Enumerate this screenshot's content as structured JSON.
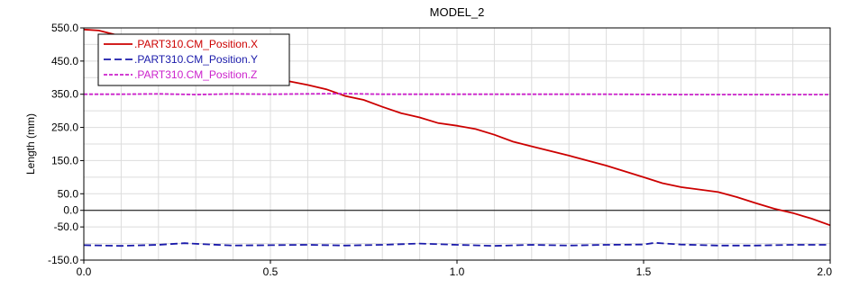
{
  "chart_data": {
    "type": "line",
    "title": "MODEL_2",
    "xlabel": "",
    "ylabel": "Length (mm)",
    "xlim": [
      0.0,
      2.0
    ],
    "ylim": [
      -150.0,
      550.0
    ],
    "x_ticks": [
      0.0,
      0.5,
      1.0,
      1.5,
      2.0
    ],
    "x_tick_labels": [
      "0.0",
      "0.5",
      "1.0",
      "1.5",
      "2.0"
    ],
    "y_ticks": [
      550.0,
      450.0,
      350.0,
      250.0,
      150.0,
      50.0,
      0.0,
      -50.0,
      -150.0
    ],
    "y_tick_labels": [
      "550.0",
      "450.0",
      "350.0",
      "250.0",
      "150.0",
      "50.0",
      "0.0",
      "-50.0",
      "-150.0"
    ],
    "grid": true,
    "zero_line": true,
    "legend_position": "top-left",
    "series": [
      {
        "name": ".PART310.CM_Position.X",
        "color": "#cc0000",
        "style": "solid",
        "x": [
          0.0,
          0.04,
          0.1,
          0.2,
          0.3,
          0.4,
          0.5,
          0.6,
          0.65,
          0.7,
          0.75,
          0.8,
          0.85,
          0.9,
          0.95,
          1.0,
          1.05,
          1.1,
          1.15,
          1.2,
          1.3,
          1.4,
          1.5,
          1.55,
          1.6,
          1.7,
          1.75,
          1.8,
          1.85,
          1.9,
          1.95,
          2.0
        ],
        "y": [
          545,
          542,
          525,
          498,
          470,
          440,
          400,
          378,
          365,
          345,
          333,
          312,
          293,
          280,
          263,
          255,
          245,
          228,
          207,
          193,
          165,
          135,
          100,
          82,
          70,
          55,
          40,
          22,
          5,
          -8,
          -25,
          -45
        ]
      },
      {
        "name": ".PART310.CM_Position.Y",
        "color": "#1a1aaa",
        "style": "dashed",
        "x": [
          0.0,
          0.1,
          0.2,
          0.27,
          0.3,
          0.4,
          0.5,
          0.6,
          0.7,
          0.8,
          0.9,
          1.0,
          1.1,
          1.2,
          1.3,
          1.4,
          1.5,
          1.53,
          1.6,
          1.7,
          1.8,
          1.9,
          2.0
        ],
        "y": [
          -105,
          -107,
          -104,
          -99,
          -101,
          -106,
          -105,
          -104,
          -106,
          -104,
          -100,
          -104,
          -107,
          -104,
          -106,
          -104,
          -103,
          -98,
          -103,
          -106,
          -106,
          -104,
          -104
        ]
      },
      {
        "name": ".PART310.CM_Position.Z",
        "color": "#cc22cc",
        "style": "dotted",
        "x": [
          0.0,
          0.1,
          0.2,
          0.3,
          0.4,
          0.5,
          0.6,
          0.7,
          0.8,
          0.9,
          1.0,
          1.2,
          1.4,
          1.6,
          1.8,
          2.0
        ],
        "y": [
          350,
          350,
          351,
          349,
          351,
          350,
          351,
          352,
          350,
          350,
          350,
          350,
          350,
          349,
          349,
          349
        ]
      }
    ]
  }
}
